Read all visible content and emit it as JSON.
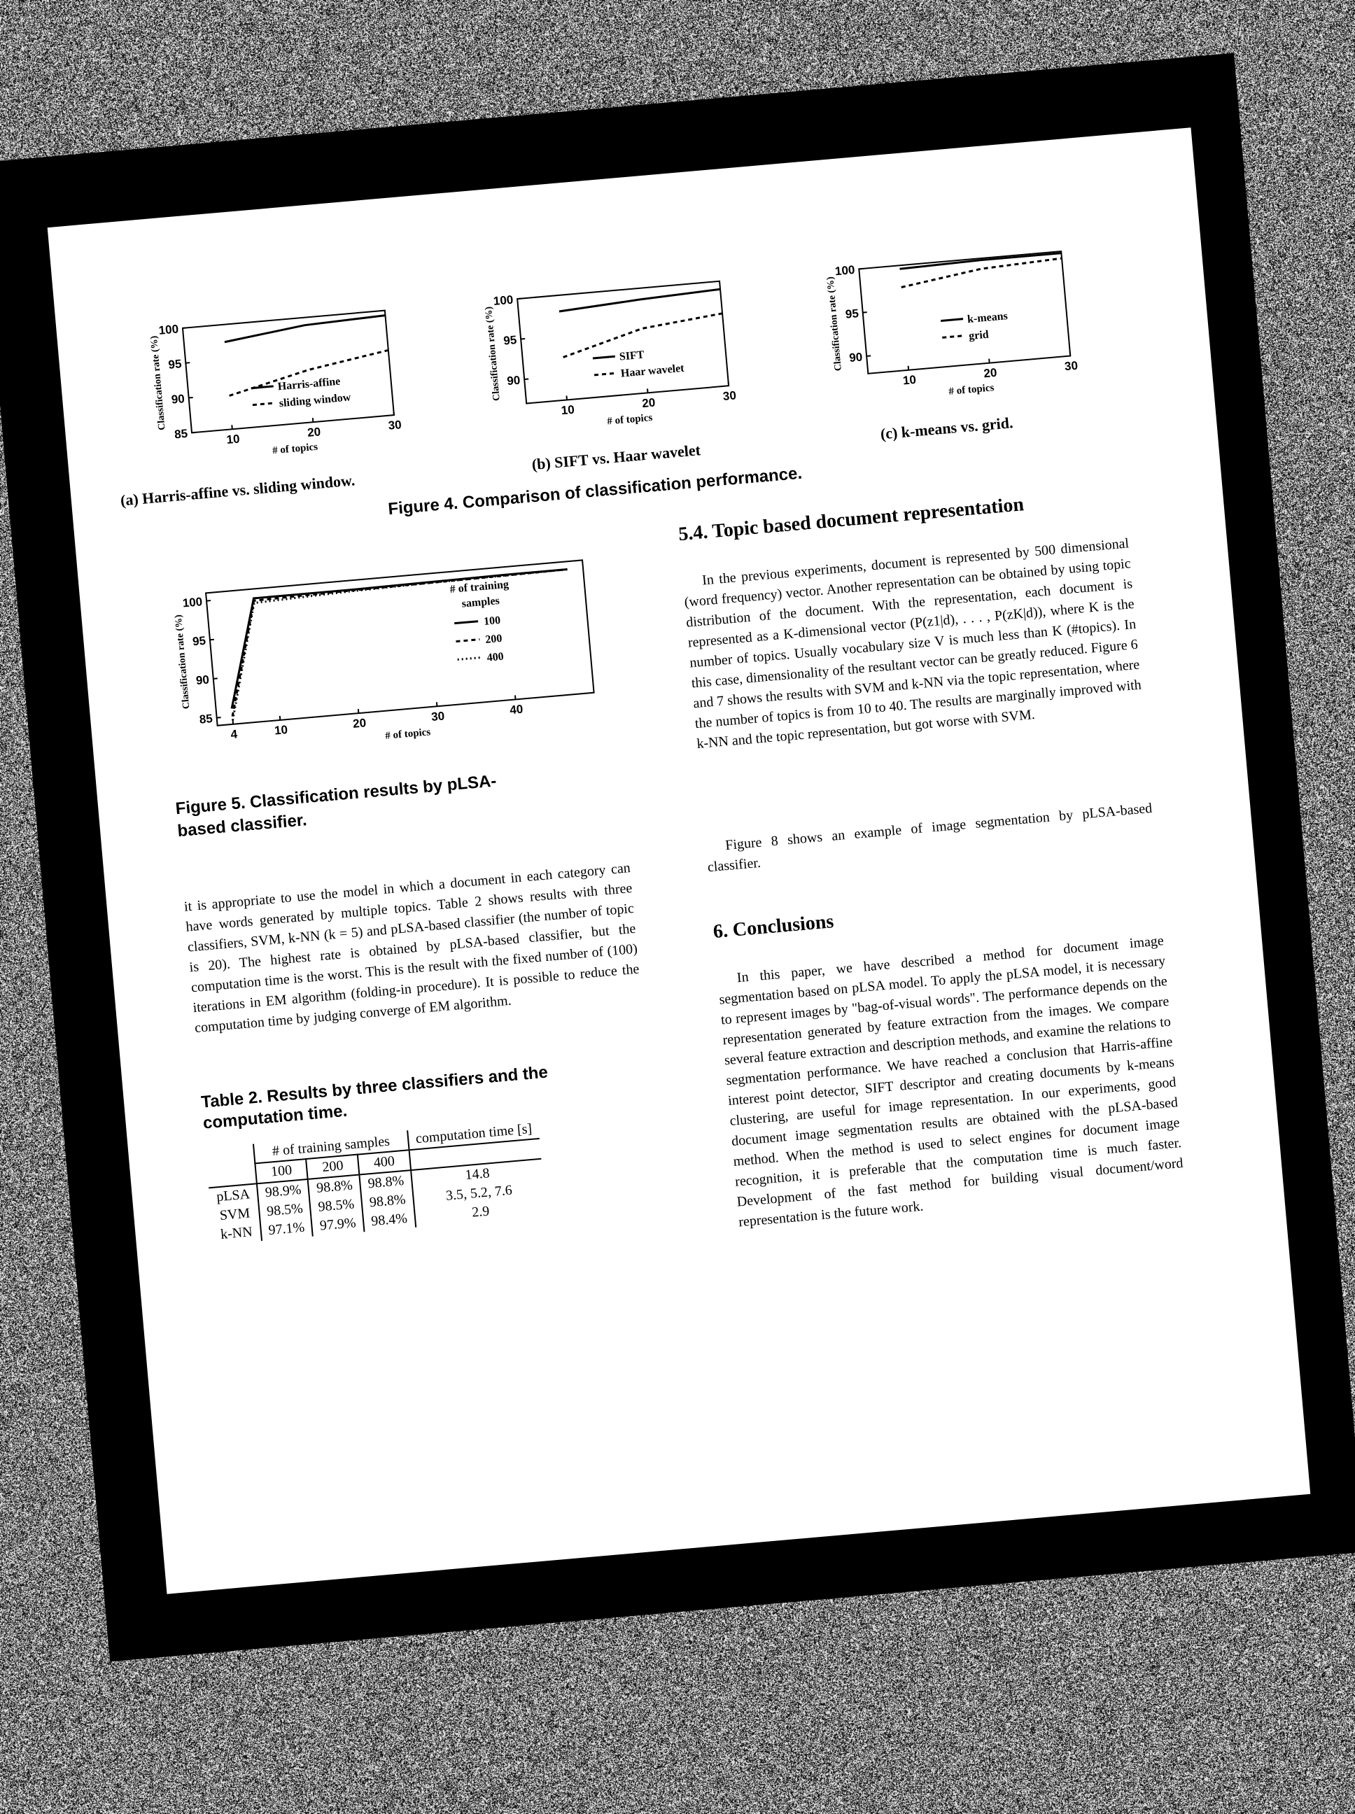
{
  "figure4": {
    "caption": "Figure 4. Comparison of classification performance.",
    "subfigures": [
      {
        "caption": "(a) Harris-affine vs. sliding window.",
        "ylabel": "Classification rate (%)",
        "xlabel": "# of topics",
        "yticks": [
          "100",
          "95",
          "90",
          "85"
        ],
        "xticks": [
          "10",
          "20",
          "30"
        ],
        "legend": [
          "Harris-affine",
          "sliding window"
        ]
      },
      {
        "caption": "(b) SIFT vs. Haar wavelet",
        "ylabel": "Classification rate (%)",
        "xlabel": "# of topics",
        "yticks": [
          "100",
          "95",
          "90"
        ],
        "xticks": [
          "10",
          "20",
          "30"
        ],
        "legend": [
          "SIFT",
          "Haar wavelet"
        ]
      },
      {
        "caption": "(c) k-means vs. grid.",
        "ylabel": "Classification rate (%)",
        "xlabel": "# of topics",
        "yticks": [
          "100",
          "95",
          "90"
        ],
        "xticks": [
          "10",
          "20",
          "30"
        ],
        "legend": [
          "k-means",
          "grid"
        ]
      }
    ]
  },
  "figure5": {
    "caption_line1": "Figure 5. Classification results by pLSA-",
    "caption_line2": "based classifier.",
    "ylabel": "Classification rate (%)",
    "xlabel": "# of topics",
    "yticks": [
      "100",
      "95",
      "90",
      "85"
    ],
    "xticks": [
      "4",
      "10",
      "20",
      "30",
      "40"
    ],
    "legend_title_1": "# of training",
    "legend_title_2": "samples",
    "legend": [
      "100",
      "200",
      "400"
    ]
  },
  "chart_data": [
    {
      "type": "line",
      "title": "",
      "xlabel": "# of topics",
      "ylabel": "Classification rate (%)",
      "xlim": [
        5,
        30
      ],
      "ylim": [
        85,
        100
      ],
      "x": [
        10,
        20,
        30
      ],
      "series": [
        {
          "name": "Harris-affine",
          "values": [
            97.5,
            98.9,
            99.3
          ]
        },
        {
          "name": "sliding window",
          "values": [
            89.8,
            92.5,
            94.3
          ]
        }
      ]
    },
    {
      "type": "line",
      "title": "",
      "xlabel": "# of topics",
      "ylabel": "Classification rate (%)",
      "xlim": [
        5,
        30
      ],
      "ylim": [
        87,
        100
      ],
      "x": [
        10,
        20,
        30
      ],
      "series": [
        {
          "name": "SIFT",
          "values": [
            98.0,
            98.6,
            99.0
          ]
        },
        {
          "name": "Haar wavelet",
          "values": [
            92.3,
            95.0,
            96.0
          ]
        }
      ]
    },
    {
      "type": "line",
      "title": "",
      "xlabel": "# of topics",
      "ylabel": "Classification rate (%)",
      "xlim": [
        5,
        30
      ],
      "ylim": [
        88,
        100
      ],
      "x": [
        10,
        20,
        30
      ],
      "series": [
        {
          "name": "k-means",
          "values": [
            99.6,
            99.8,
            99.8
          ]
        },
        {
          "name": "grid",
          "values": [
            97.5,
            98.8,
            99.2
          ]
        }
      ]
    },
    {
      "type": "line",
      "title": "",
      "xlabel": "# of topics",
      "ylabel": "Classification rate (%)",
      "xlim": [
        2,
        50
      ],
      "ylim": [
        84,
        101
      ],
      "x": [
        4,
        8,
        20,
        30,
        40,
        48
      ],
      "series": [
        {
          "name": "100",
          "values": [
            86.0,
            99.8,
            99.8,
            99.9,
            100.0,
            100.0
          ]
        },
        {
          "name": "200",
          "values": [
            85.0,
            99.5,
            99.7,
            99.8,
            99.9,
            100.0
          ]
        },
        {
          "name": "400",
          "values": [
            84.5,
            99.2,
            99.6,
            99.8,
            99.9,
            100.0
          ]
        }
      ]
    }
  ],
  "section54": {
    "heading": "5.4. Topic based document representation",
    "para1": "In the previous experiments, document is represented by 500 dimensional (word frequency) vector. Another representation can be obtained by using topic distribution of the document. With the representation, each document is represented as a K-dimensional vector (P(z1|d), . . . , P(zK|d)), where K is the number of topics. Usually vocabulary size V is much less than K (#topics). In this case, dimensionality of the resultant vector can be greatly reduced. Figure 6 and 7 shows the results with SVM and k-NN via the topic representation, where the number of topics is from 10 to 40. The results are marginally improved with k-NN and the topic representation, but got worse with SVM.",
    "para2": "Figure 8 shows an example of image segmentation by pLSA-based classifier."
  },
  "left_para": "it is appropriate to use the model in which a document in each category can have words generated by multiple topics. Table 2 shows results with three classifiers, SVM, k-NN (k = 5) and pLSA-based classifier (the number of topic is 20). The highest rate is obtained by pLSA-based classifier, but the computation time is the worst. This is the result with the fixed number of (100) iterations in EM algorithm (folding-in procedure). It is possible to reduce the computation time by judging converge of EM algorithm.",
  "table2": {
    "caption": "Table 2. Results by three classifiers and the computation time.",
    "header_samples": "# of training samples",
    "header_time": "computation time [s]",
    "cols": [
      "100",
      "200",
      "400"
    ],
    "rows": [
      {
        "name": "pLSA",
        "v": [
          "98.9%",
          "98.8%",
          "98.8%"
        ],
        "t": "14.8"
      },
      {
        "name": "SVM",
        "v": [
          "98.5%",
          "98.5%",
          "98.8%"
        ],
        "t": "3.5, 5.2, 7.6"
      },
      {
        "name": "k-NN",
        "v": [
          "97.1%",
          "97.9%",
          "98.4%"
        ],
        "t": "2.9"
      }
    ]
  },
  "section6": {
    "heading": "6. Conclusions",
    "para": "In this paper, we have described a method for document image segmentation based on pLSA model. To apply the pLSA model, it is necessary to represent images by \"bag-of-visual words\". The performance depends on the representation generated by feature extraction from the images. We compare several feature extraction and description methods, and examine the relations to segmentation performance. We have reached a conclusion that Harris-affine interest point detector, SIFT descriptor and creating documents by k-means clustering, are useful for image representation. In our experiments, good document image segmentation results are obtained with the pLSA-based method. When the method is used to select engines for document image recognition, it is preferable that the computation time is much faster. Development of the fast method for building visual document/word representation is the future work."
  }
}
